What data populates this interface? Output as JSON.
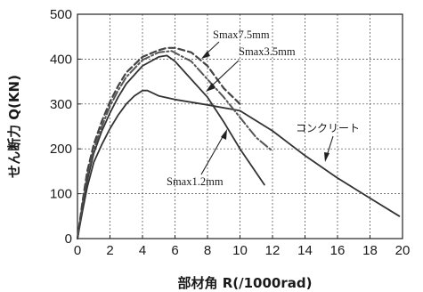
{
  "chart_data": {
    "type": "line",
    "title": "",
    "xlabel": "部材角 R(/1000rad)",
    "ylabel": "せん断力 Q(KN)",
    "xlim": [
      0,
      20
    ],
    "ylim": [
      0,
      500
    ],
    "xticks": [
      0,
      2,
      4,
      6,
      8,
      10,
      12,
      14,
      16,
      18,
      20
    ],
    "yticks": [
      0,
      100,
      200,
      300,
      400,
      500
    ],
    "grid": true,
    "series": [
      {
        "name": "コンクリート",
        "color": "#333333",
        "style": "solid",
        "x": [
          0,
          0.3,
          0.6,
          1.0,
          1.5,
          2.0,
          2.5,
          3.0,
          3.5,
          4.0,
          4.3,
          5.0,
          6.0,
          8.0,
          10.0,
          12.0,
          14.0,
          16.0,
          18.0,
          19.8
        ],
        "y": [
          0,
          60,
          115,
          170,
          210,
          245,
          275,
          300,
          318,
          330,
          330,
          318,
          310,
          298,
          285,
          240,
          185,
          135,
          90,
          50
        ]
      },
      {
        "name": "Smax1.2mm",
        "color": "#333333",
        "style": "solid",
        "x": [
          0,
          0.3,
          0.6,
          1.0,
          1.5,
          2.0,
          2.5,
          3.0,
          4.0,
          5.0,
          5.5,
          6.0,
          7.0,
          8.0,
          9.0,
          10.0,
          11.5
        ],
        "y": [
          0,
          70,
          130,
          190,
          240,
          280,
          315,
          345,
          385,
          405,
          408,
          395,
          355,
          315,
          260,
          200,
          120
        ]
      },
      {
        "name": "Smax3.5mm",
        "color": "#555555",
        "style": "dashdot",
        "x": [
          0,
          0.3,
          0.6,
          1.0,
          1.5,
          2.0,
          2.5,
          3.0,
          4.0,
          5.0,
          5.8,
          7.0,
          8.0,
          9.0,
          10.0,
          11.0,
          12.0
        ],
        "y": [
          0,
          75,
          140,
          200,
          250,
          295,
          330,
          360,
          398,
          415,
          418,
          395,
          355,
          315,
          270,
          225,
          195
        ]
      },
      {
        "name": "Smax7.5mm",
        "color": "#444444",
        "style": "dashed",
        "x": [
          0,
          0.3,
          0.6,
          1.0,
          1.5,
          2.0,
          2.5,
          3.0,
          4.0,
          5.0,
          5.5,
          6.0,
          7.0,
          7.5,
          8.0,
          9.0,
          10.0
        ],
        "y": [
          0,
          80,
          150,
          210,
          262,
          305,
          340,
          370,
          405,
          420,
          425,
          425,
          415,
          400,
          385,
          335,
          300
        ]
      }
    ],
    "annotations": [
      {
        "text": "Smax7.5mm"
      },
      {
        "text": "Smax3.5mm"
      },
      {
        "text": "Smax1.2mm"
      },
      {
        "text": "コンクリート"
      }
    ]
  }
}
